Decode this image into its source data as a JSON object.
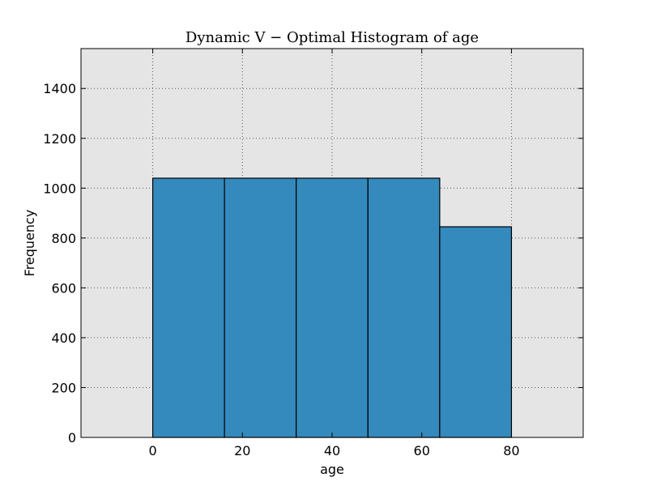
{
  "chart_data": {
    "type": "bar",
    "subtype": "histogram",
    "title": "Dynamic V − Optimal Histogram of age",
    "xlabel": "age",
    "ylabel": "Frequency",
    "xlim": [
      -16,
      96
    ],
    "ylim": [
      0,
      1560
    ],
    "bin_edges": [
      0,
      16,
      32,
      48,
      64,
      80
    ],
    "values": [
      1040,
      1040,
      1040,
      1040,
      845
    ],
    "x_ticks": [
      0,
      20,
      40,
      60,
      80
    ],
    "y_ticks": [
      0,
      200,
      400,
      600,
      800,
      1000,
      1200,
      1400
    ],
    "grid": true,
    "colors": {
      "bar_fill": "#348abd",
      "bar_edge": "#000000",
      "plot_background": "#e5e5e5",
      "grid": "#555555"
    }
  }
}
